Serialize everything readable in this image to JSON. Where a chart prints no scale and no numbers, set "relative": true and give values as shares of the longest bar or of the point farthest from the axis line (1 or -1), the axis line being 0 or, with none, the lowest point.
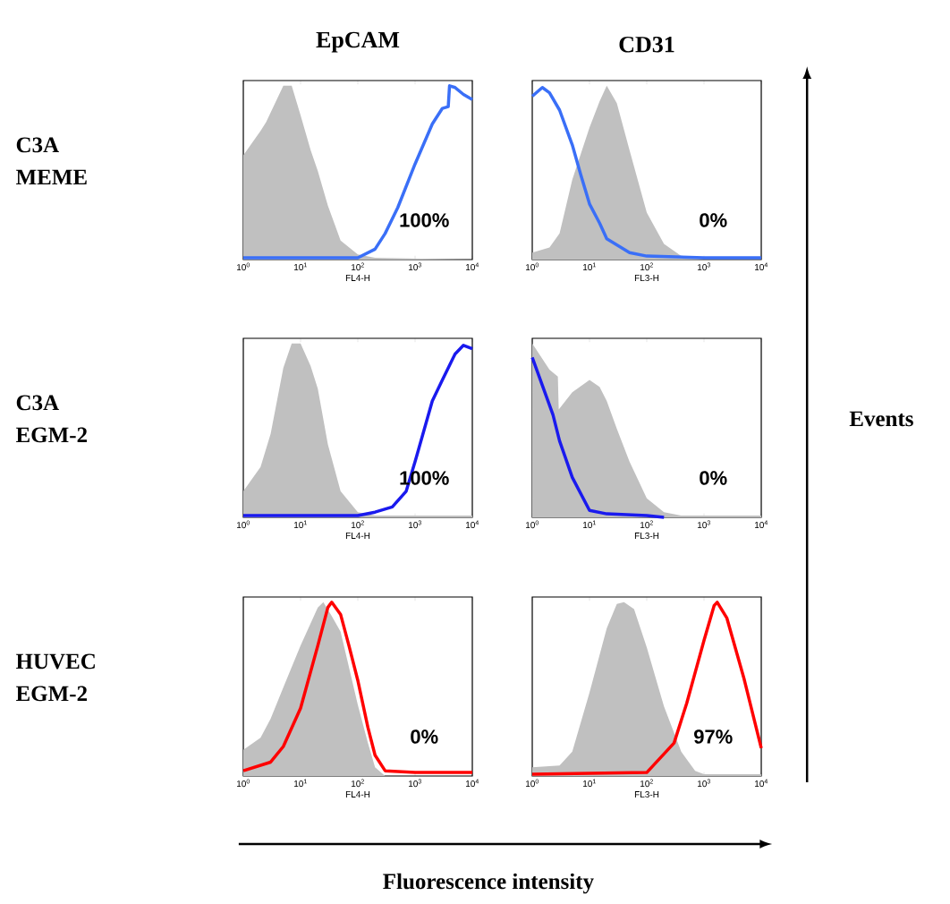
{
  "chart_data": [
    {
      "type": "area",
      "title": "EpCAM",
      "ylabel": "C3A MEME",
      "xlabel": "FL4-H",
      "relative": true,
      "log": "x",
      "xlim": [
        1,
        10000
      ],
      "xticks": [
        {
          "value": 1,
          "label": "10$^{0}$"
        },
        {
          "value": 10,
          "label": "10$^{1}$"
        },
        {
          "value": 100,
          "label": "10$^{2}$"
        },
        {
          "value": 1000,
          "label": "10$^{3}$"
        },
        {
          "value": 10000,
          "label": "10$^{4}$"
        }
      ],
      "annotations": [
        "100%"
      ],
      "series": [
        {
          "type": "area",
          "color": "#c0c0c0",
          "x": [
            1,
            2,
            2.5,
            5,
            7,
            10,
            15,
            20,
            30,
            50,
            100,
            200,
            10000
          ],
          "values": [
            0.6,
            0.74,
            0.79,
            1.0,
            1.0,
            0.83,
            0.63,
            0.51,
            0.31,
            0.11,
            0.03,
            0.01,
            0
          ]
        },
        {
          "type": "line",
          "color": "#3a6ff7",
          "x": [
            1,
            100,
            200,
            300,
            500,
            1000,
            2000,
            3000,
            3800,
            4000,
            5000,
            7000,
            10000
          ],
          "values": [
            0.01,
            0.01,
            0.06,
            0.15,
            0.3,
            0.55,
            0.78,
            0.87,
            0.88,
            1.0,
            0.99,
            0.95,
            0.92
          ]
        }
      ]
    },
    {
      "type": "area",
      "title": "CD31",
      "xlabel": "FL3-H",
      "relative": true,
      "log": "x",
      "xlim": [
        1,
        10000
      ],
      "xticks": [
        {
          "value": 1,
          "label": "10$^{0}$"
        },
        {
          "value": 10,
          "label": "10$^{1}$"
        },
        {
          "value": 100,
          "label": "10$^{2}$"
        },
        {
          "value": 1000,
          "label": "10$^{3}$"
        },
        {
          "value": 10000,
          "label": "10$^{4}$"
        }
      ],
      "annotations": [
        "0%"
      ],
      "series": [
        {
          "type": "area",
          "color": "#c0c0c0",
          "x": [
            1,
            2,
            3,
            5,
            10,
            15,
            20,
            30,
            50,
            100,
            200,
            400,
            1000,
            10000
          ],
          "values": [
            0.04,
            0.07,
            0.15,
            0.46,
            0.76,
            0.91,
            1.0,
            0.9,
            0.63,
            0.27,
            0.09,
            0.02,
            0,
            0
          ]
        },
        {
          "type": "line",
          "color": "#3a6ff7",
          "x": [
            1,
            1.5,
            2,
            3,
            5,
            7,
            10,
            15,
            20,
            50,
            100,
            1000,
            10000
          ],
          "values": [
            0.94,
            0.99,
            0.96,
            0.86,
            0.66,
            0.49,
            0.32,
            0.21,
            0.12,
            0.04,
            0.02,
            0.01,
            0.01
          ]
        }
      ]
    },
    {
      "type": "area",
      "ylabel": "C3A EGM-2",
      "xlabel": "FL4-H",
      "relative": true,
      "log": "x",
      "xlim": [
        1,
        10000
      ],
      "xticks": [
        {
          "value": 1,
          "label": "10$^{0}$"
        },
        {
          "value": 10,
          "label": "10$^{1}$"
        },
        {
          "value": 100,
          "label": "10$^{2}$"
        },
        {
          "value": 1000,
          "label": "10$^{3}$"
        },
        {
          "value": 10000,
          "label": "10$^{4}$"
        }
      ],
      "annotations": [
        "100%"
      ],
      "series": [
        {
          "type": "area",
          "color": "#c0c0c0",
          "x": [
            1,
            2,
            3,
            5,
            7,
            10,
            15,
            20,
            30,
            50,
            100,
            200,
            10000
          ],
          "values": [
            0.15,
            0.29,
            0.48,
            0.86,
            1.0,
            1.0,
            0.87,
            0.74,
            0.42,
            0.15,
            0.03,
            0.01,
            0.01
          ]
        },
        {
          "type": "line",
          "color": "#1a1aee",
          "x": [
            1,
            100,
            200,
            400,
            700,
            1000,
            2000,
            3000,
            5000,
            7000,
            10000
          ],
          "values": [
            0.01,
            0.01,
            0.03,
            0.06,
            0.15,
            0.32,
            0.67,
            0.79,
            0.94,
            0.99,
            0.97
          ]
        }
      ]
    },
    {
      "type": "area",
      "xlabel": "FL3-H",
      "relative": true,
      "log": "x",
      "xlim": [
        1,
        10000
      ],
      "xticks": [
        {
          "value": 1,
          "label": "10$^{0}$"
        },
        {
          "value": 10,
          "label": "10$^{1}$"
        },
        {
          "value": 100,
          "label": "10$^{2}$"
        },
        {
          "value": 1000,
          "label": "10$^{3}$"
        },
        {
          "value": 10000,
          "label": "10$^{4}$"
        }
      ],
      "annotations": [
        "0%",
        "Events"
      ],
      "series": [
        {
          "type": "area",
          "color": "#c0c0c0",
          "x": [
            1,
            2,
            2.8,
            2.9,
            5,
            10,
            15,
            20,
            30,
            50,
            100,
            200,
            400,
            10000
          ],
          "values": [
            1.0,
            0.85,
            0.81,
            0.62,
            0.72,
            0.79,
            0.75,
            0.67,
            0.51,
            0.32,
            0.11,
            0.03,
            0.01,
            0.01
          ]
        },
        {
          "type": "line",
          "color": "#1a1aee",
          "x": [
            1,
            2.3,
            3,
            5,
            10,
            20,
            100,
            200
          ],
          "values": [
            0.92,
            0.59,
            0.44,
            0.23,
            0.04,
            0.02,
            0.01,
            0
          ]
        }
      ]
    },
    {
      "type": "area",
      "ylabel": "HUVEC EGM-2",
      "xlabel": "FL4-H",
      "relative": true,
      "log": "x",
      "xlim": [
        1,
        10000
      ],
      "xticks": [
        {
          "value": 1,
          "label": "10$^{0}$"
        },
        {
          "value": 10,
          "label": "10$^{1}$"
        },
        {
          "value": 100,
          "label": "10$^{2}$"
        },
        {
          "value": 1000,
          "label": "10$^{3}$"
        },
        {
          "value": 10000,
          "label": "10$^{4}$"
        }
      ],
      "annotations": [
        "0%",
        "Fluorescence intensity"
      ],
      "series": [
        {
          "type": "area",
          "color": "#c0c0c0",
          "x": [
            1,
            2,
            3,
            5,
            10,
            20,
            25,
            35,
            50,
            100,
            150,
            200,
            300,
            10000
          ],
          "values": [
            0.15,
            0.22,
            0.33,
            0.51,
            0.75,
            0.97,
            1.0,
            0.92,
            0.83,
            0.41,
            0.19,
            0.05,
            0,
            0
          ]
        },
        {
          "type": "line",
          "color": "#ff0000",
          "x": [
            1,
            3,
            5,
            10,
            20,
            30,
            35,
            50,
            70,
            100,
            150,
            200,
            300,
            1000,
            10000
          ],
          "values": [
            0.03,
            0.08,
            0.17,
            0.39,
            0.75,
            0.97,
            1.0,
            0.93,
            0.75,
            0.55,
            0.28,
            0.12,
            0.03,
            0.02,
            0.02
          ]
        }
      ]
    },
    {
      "type": "area",
      "xlabel": "FL3-H",
      "relative": true,
      "log": "x",
      "xlim": [
        1,
        10000
      ],
      "xticks": [
        {
          "value": 1,
          "label": "10$^{0}$"
        },
        {
          "value": 10,
          "label": "10$^{1}$"
        },
        {
          "value": 100,
          "label": "10$^{2}$"
        },
        {
          "value": 1000,
          "label": "10$^{3}$"
        },
        {
          "value": 10000,
          "label": "10$^{4}$"
        }
      ],
      "annotations": [
        "97%"
      ],
      "series": [
        {
          "type": "area",
          "color": "#c0c0c0",
          "x": [
            1,
            3,
            5,
            10,
            20,
            30,
            40,
            60,
            100,
            200,
            400,
            700,
            1000,
            10000
          ],
          "values": [
            0.05,
            0.06,
            0.14,
            0.48,
            0.85,
            0.99,
            1.0,
            0.96,
            0.74,
            0.4,
            0.14,
            0.03,
            0.01,
            0.01
          ]
        },
        {
          "type": "line",
          "color": "#ff0000",
          "x": [
            1,
            100,
            300,
            500,
            1000,
            1500,
            1700,
            2500,
            5000,
            10000
          ],
          "values": [
            0.01,
            0.02,
            0.19,
            0.42,
            0.78,
            0.98,
            1.0,
            0.91,
            0.56,
            0.16
          ]
        }
      ]
    }
  ]
}
